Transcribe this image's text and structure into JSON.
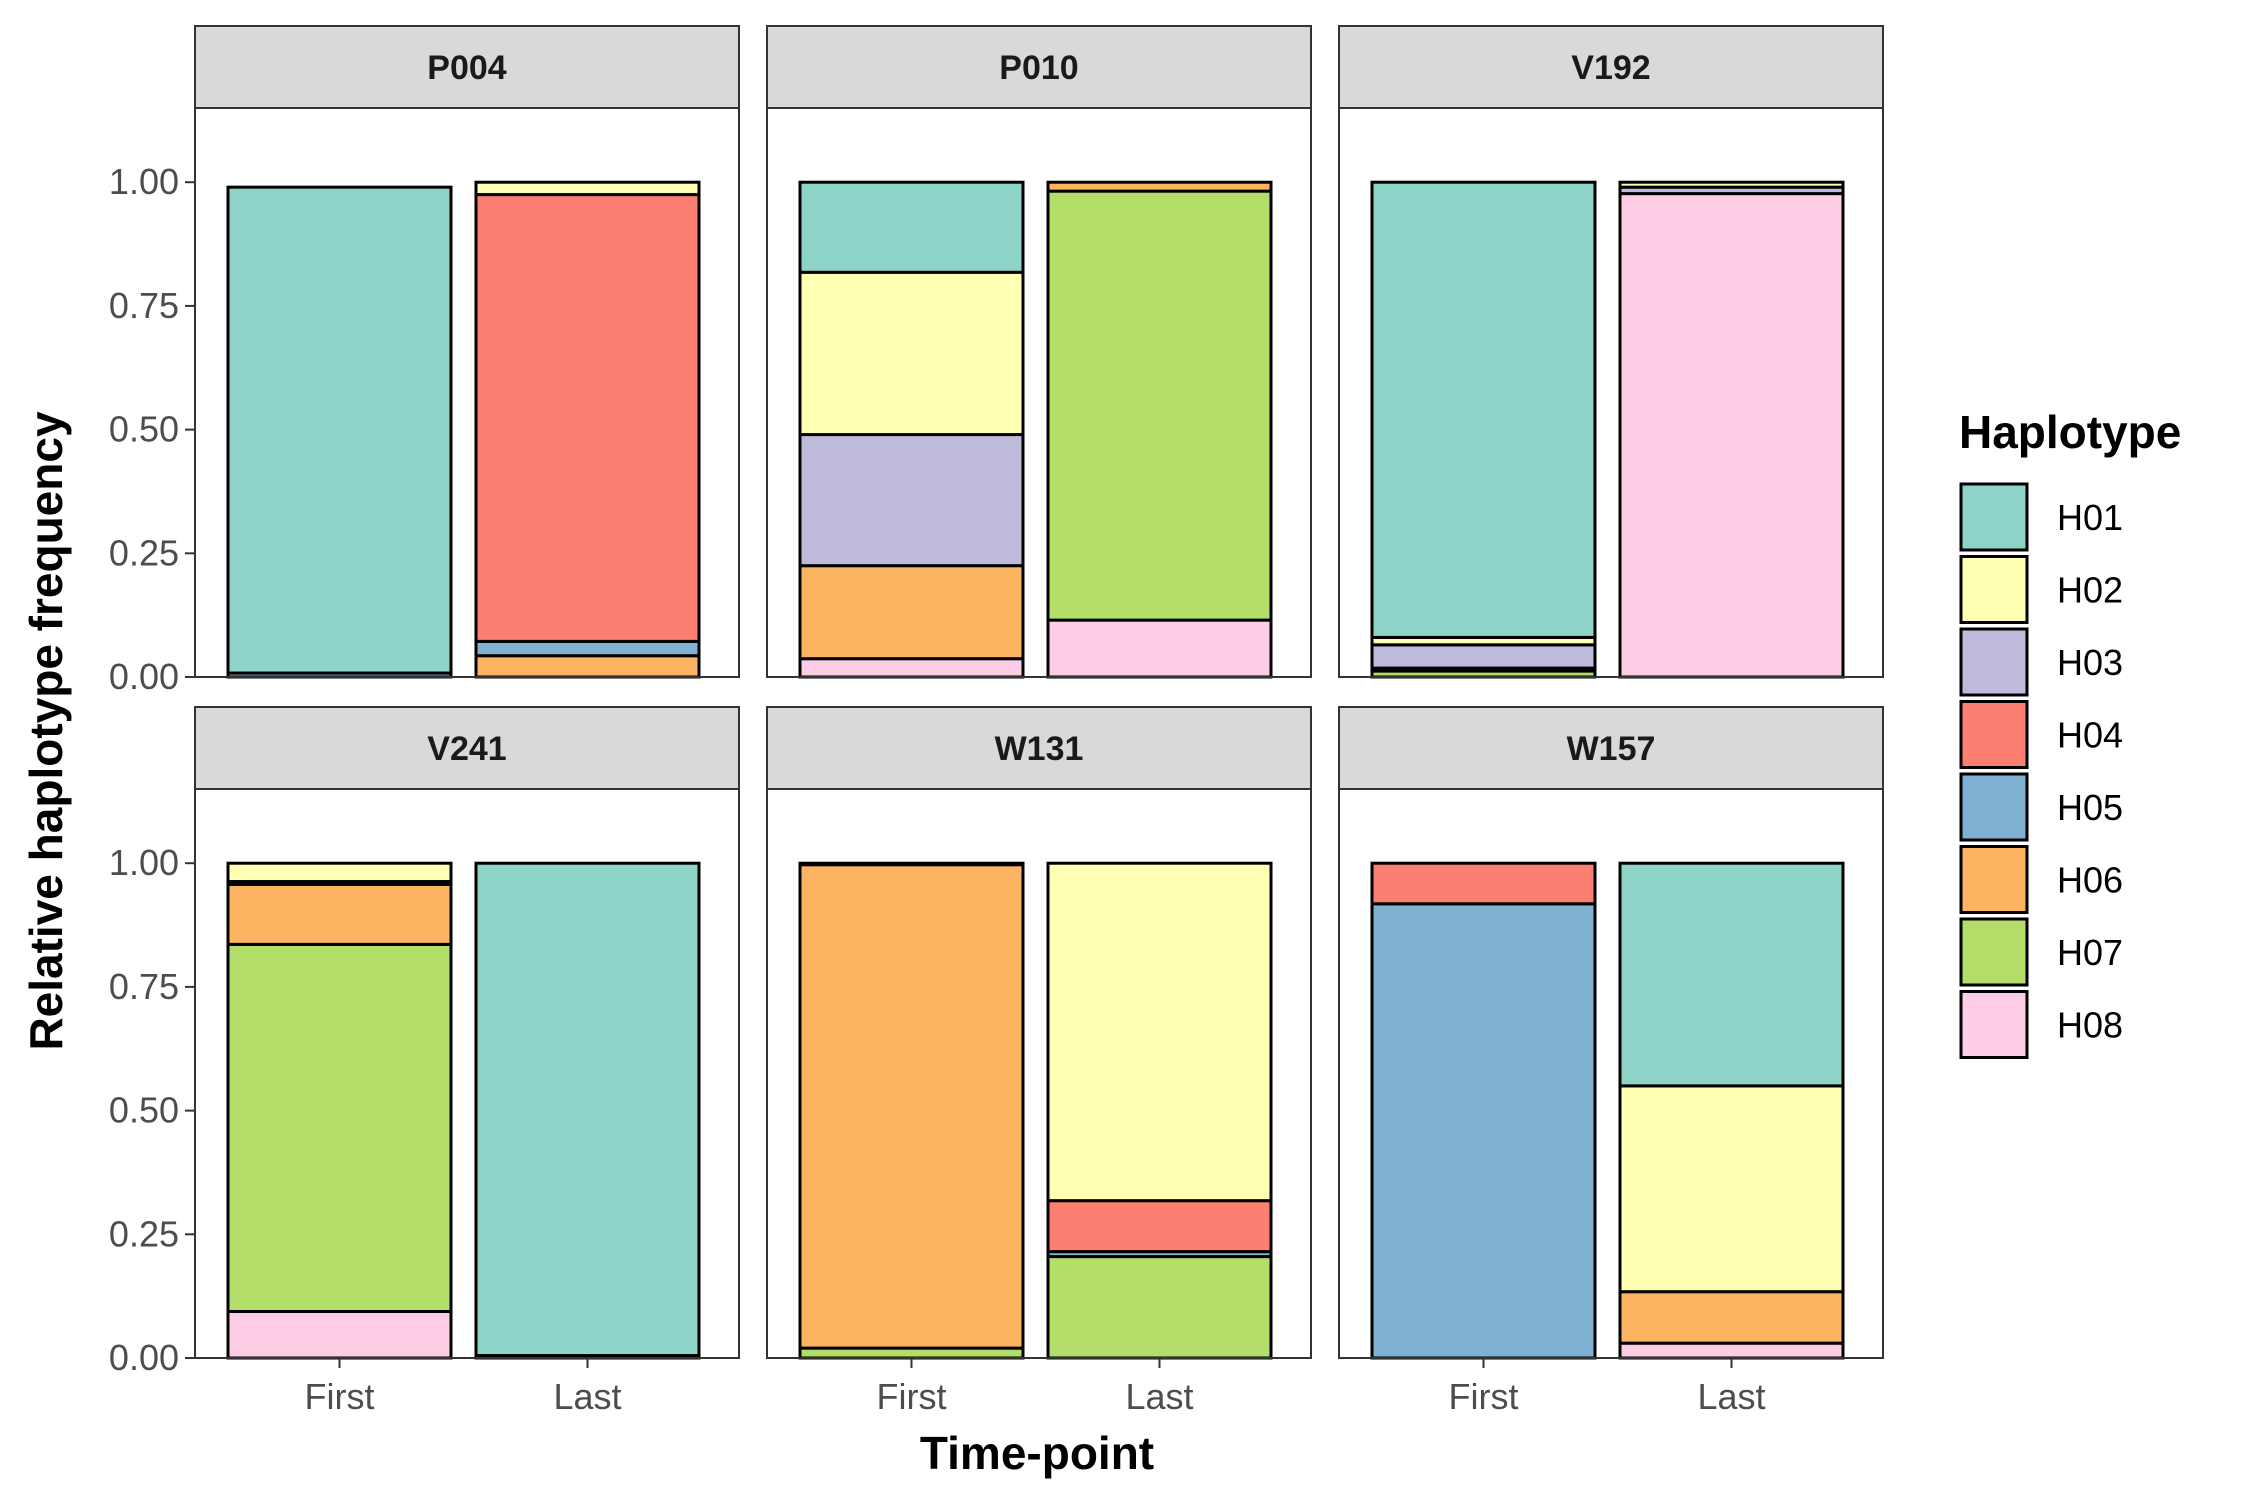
{
  "chart_data": {
    "type": "bar",
    "stacked": true,
    "xlabel": "Time-point",
    "ylabel": "Relative haplotype frequency",
    "ylim": [
      0,
      1.15
    ],
    "yticks": [
      "0.00",
      "0.25",
      "0.50",
      "0.75",
      "1.00"
    ],
    "categories": [
      "First",
      "Last"
    ],
    "legend": {
      "title": "Haplotype",
      "placement": "right",
      "entries": [
        {
          "name": "H01",
          "color": "#8DD3C7"
        },
        {
          "name": "H02",
          "color": "#FFFFB3"
        },
        {
          "name": "H03",
          "color": "#BEBADA"
        },
        {
          "name": "H04",
          "color": "#FB8072"
        },
        {
          "name": "H05",
          "color": "#80B1D3"
        },
        {
          "name": "H06",
          "color": "#FDB462"
        },
        {
          "name": "H07",
          "color": "#B3DE69"
        },
        {
          "name": "H08",
          "color": "#FCCDE5"
        }
      ]
    },
    "panels": [
      {
        "title": "P004",
        "bars": [
          {
            "x": "First",
            "segments": [
              {
                "haplotype": "H05",
                "value": 0.008
              },
              {
                "haplotype": "H01",
                "value": 0.982
              }
            ]
          },
          {
            "x": "Last",
            "segments": [
              {
                "haplotype": "H06",
                "value": 0.043
              },
              {
                "haplotype": "H05",
                "value": 0.029
              },
              {
                "haplotype": "H04",
                "value": 0.903
              },
              {
                "haplotype": "H02",
                "value": 0.025
              }
            ]
          }
        ]
      },
      {
        "title": "P010",
        "bars": [
          {
            "x": "First",
            "segments": [
              {
                "haplotype": "H08",
                "value": 0.037
              },
              {
                "haplotype": "H06",
                "value": 0.188
              },
              {
                "haplotype": "H03",
                "value": 0.265
              },
              {
                "haplotype": "H02",
                "value": 0.328
              },
              {
                "haplotype": "H01",
                "value": 0.182
              }
            ]
          },
          {
            "x": "Last",
            "segments": [
              {
                "haplotype": "H08",
                "value": 0.115
              },
              {
                "haplotype": "H07",
                "value": 0.867
              },
              {
                "haplotype": "H06",
                "value": 0.018
              }
            ]
          }
        ]
      },
      {
        "title": "V192",
        "bars": [
          {
            "x": "First",
            "segments": [
              {
                "haplotype": "H07",
                "value": 0.012
              },
              {
                "haplotype": "H05",
                "value": 0.006
              },
              {
                "haplotype": "H03",
                "value": 0.047
              },
              {
                "haplotype": "H02",
                "value": 0.015
              },
              {
                "haplotype": "H01",
                "value": 0.92
              }
            ]
          },
          {
            "x": "Last",
            "segments": [
              {
                "haplotype": "H08",
                "value": 0.977
              },
              {
                "haplotype": "H03",
                "value": 0.013
              },
              {
                "haplotype": "H02",
                "value": 0.01
              }
            ]
          }
        ]
      },
      {
        "title": "V241",
        "bars": [
          {
            "x": "First",
            "segments": [
              {
                "haplotype": "H08",
                "value": 0.094
              },
              {
                "haplotype": "H07",
                "value": 0.742
              },
              {
                "haplotype": "H06",
                "value": 0.121
              },
              {
                "haplotype": "H05",
                "value": 0.006
              },
              {
                "haplotype": "H02",
                "value": 0.037
              }
            ]
          },
          {
            "x": "Last",
            "segments": [
              {
                "haplotype": "H07",
                "value": 0.005
              },
              {
                "haplotype": "H01",
                "value": 0.995
              }
            ]
          }
        ]
      },
      {
        "title": "W131",
        "bars": [
          {
            "x": "First",
            "segments": [
              {
                "haplotype": "H07",
                "value": 0.02
              },
              {
                "haplotype": "H06",
                "value": 0.977
              },
              {
                "haplotype": "H02",
                "value": 0.003
              }
            ]
          },
          {
            "x": "Last",
            "segments": [
              {
                "haplotype": "H07",
                "value": 0.205
              },
              {
                "haplotype": "H05",
                "value": 0.01
              },
              {
                "haplotype": "H04",
                "value": 0.103
              },
              {
                "haplotype": "H02",
                "value": 0.682
              }
            ]
          }
        ]
      },
      {
        "title": "W157",
        "bars": [
          {
            "x": "First",
            "segments": [
              {
                "haplotype": "H05",
                "value": 0.918
              },
              {
                "haplotype": "H04",
                "value": 0.082
              }
            ]
          },
          {
            "x": "Last",
            "segments": [
              {
                "haplotype": "H08",
                "value": 0.03
              },
              {
                "haplotype": "H06",
                "value": 0.104
              },
              {
                "haplotype": "H02",
                "value": 0.416
              },
              {
                "haplotype": "H01",
                "value": 0.45
              }
            ]
          }
        ]
      }
    ]
  }
}
